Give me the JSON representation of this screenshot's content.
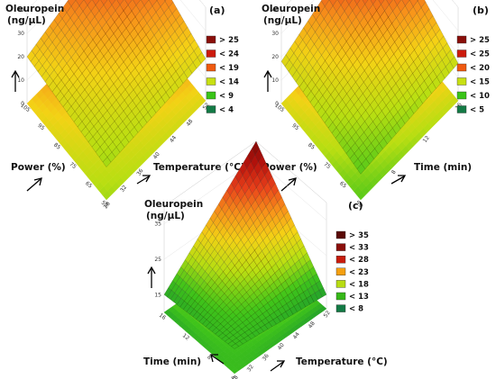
{
  "chart_data": [
    {
      "type": "surface3d",
      "panel": "(a)",
      "zlabel": "Oleuropein\n(ng/µL)",
      "xlabel": "Power (%)",
      "ylabel": "Temperature (°C)",
      "x_ticks": [
        "55",
        "65",
        "75",
        "85",
        "95",
        "105"
      ],
      "y_ticks": [
        "28",
        "32",
        "36",
        "40",
        "44",
        "48",
        "52"
      ],
      "z_ticks": [
        "0",
        "10",
        "20",
        "30",
        "40"
      ],
      "zlim": [
        0,
        40
      ],
      "surface": {
        "z00": 14,
        "z10": 20,
        "z01": 18,
        "z11": 36
      },
      "legend": [
        "> 25",
        "< 24",
        "< 19",
        "< 14",
        "< 9",
        "< 4"
      ],
      "legend_colors": [
        "#8a0f0a",
        "#cc1a0c",
        "#f05a10",
        "#c8e012",
        "#39c418",
        "#137a45"
      ],
      "levels": [
        4,
        9,
        14,
        19,
        24,
        25
      ]
    },
    {
      "type": "surface3d",
      "panel": "(b)",
      "zlabel": "Oleuropein\n(ng/µL)",
      "xlabel": "Power (%)",
      "ylabel": "Time (min)",
      "x_ticks": [
        "55",
        "65",
        "75",
        "85",
        "95",
        "105"
      ],
      "y_ticks": [
        "4",
        "8",
        "12",
        "16"
      ],
      "z_ticks": [
        "0",
        "10",
        "20",
        "30",
        "40"
      ],
      "zlim": [
        0,
        40
      ],
      "surface": {
        "z00": 11,
        "z10": 18,
        "z01": 16,
        "z11": 39
      },
      "legend": [
        "> 25",
        "< 25",
        "< 20",
        "< 15",
        "< 10",
        "< 5"
      ],
      "legend_colors": [
        "#8a0f0a",
        "#cc1a0c",
        "#f05a10",
        "#c8e012",
        "#39c418",
        "#137a45"
      ],
      "levels": [
        5,
        10,
        15,
        20,
        25,
        25
      ]
    },
    {
      "type": "surface3d",
      "panel": "(c)",
      "zlabel": "Oleuropein\n(ng/µL)",
      "xlabel": "Time (min)",
      "ylabel": "Temperature (°C)",
      "x_ticks": [
        "4",
        "8",
        "12",
        "16"
      ],
      "y_ticks": [
        "28",
        "32",
        "36",
        "40",
        "44",
        "48",
        "52"
      ],
      "z_ticks": [
        "15",
        "25",
        "35"
      ],
      "zlim": [
        10,
        40
      ],
      "surface": {
        "z00": 17,
        "z10": 15,
        "z01": 14,
        "z11": 40
      },
      "legend": [
        "> 35",
        "< 33",
        "< 28",
        "< 23",
        "< 18",
        "< 13",
        "< 8"
      ],
      "legend_colors": [
        "#5a0a06",
        "#8a0f0a",
        "#c81c0c",
        "#f5a010",
        "#b8dc12",
        "#36b818",
        "#137a45"
      ],
      "levels": [
        8,
        13,
        18,
        23,
        28,
        33,
        35
      ]
    }
  ],
  "colors": {
    "mesh_line": "#000000",
    "arrow": "#000000"
  }
}
